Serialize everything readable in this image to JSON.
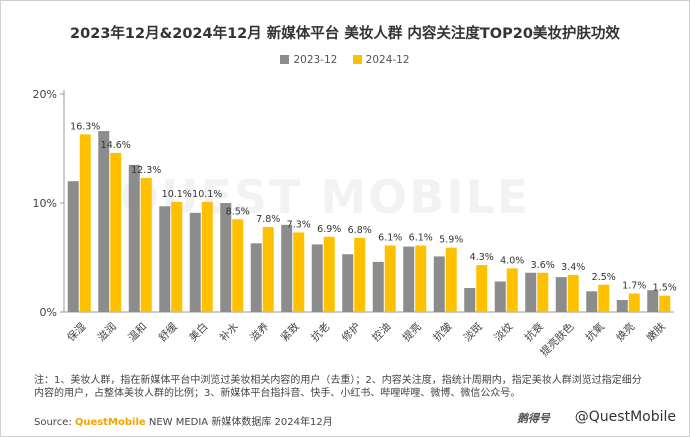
{
  "title": "2023年12月&2024年12月 新媒体平台 美妆人群 内容关注度TOP20美妆护肤功效",
  "legend": {
    "s1": "2023-12",
    "s2": "2024-12"
  },
  "colors": {
    "s1": "#8c8c8c",
    "s2": "#ffc000"
  },
  "note": "注：1、美妆人群，指在新媒体平台中浏览过美妆相关内容的用户（去重）；2、内容关注度，指统计周期内，指定美妆人群浏览过指定细分内容的用户，占整体美妆人群的比例；3、新媒体平台指抖音、快手、小红书、哔哩哔哩、微博、微信公众号。",
  "source": {
    "prefix": "Source: ",
    "brand": "QuestMobile",
    "rest": " NEW MEDIA 新媒体数据库 2024年12月"
  },
  "watermark": {
    "logo": "鹅得号",
    "handle": "@QuestMobile",
    "bg": "QUEST MOBILE"
  },
  "chart_data": {
    "type": "bar",
    "categories": [
      "保湿",
      "滋润",
      "温和",
      "舒缓",
      "美白",
      "补水",
      "滋养",
      "紧致",
      "抗老",
      "修护",
      "控油",
      "提亮",
      "抗皱",
      "淡斑",
      "淡纹",
      "抗衰",
      "提亮肤色",
      "抗氧",
      "焕亮",
      "嫩肤"
    ],
    "series": [
      {
        "name": "2023-12",
        "values": [
          12.0,
          16.6,
          13.5,
          9.7,
          9.1,
          10.0,
          6.3,
          8.0,
          6.2,
          5.3,
          4.6,
          6.0,
          5.1,
          2.2,
          2.8,
          3.6,
          3.2,
          1.9,
          1.1,
          2.0
        ]
      },
      {
        "name": "2024-12",
        "values": [
          16.3,
          14.6,
          12.3,
          10.1,
          10.1,
          8.5,
          7.8,
          7.3,
          6.9,
          6.8,
          6.1,
          6.1,
          5.9,
          4.3,
          4.0,
          3.6,
          3.4,
          2.5,
          1.7,
          1.5
        ]
      }
    ],
    "labels": [
      "16.3%",
      "14.6%",
      "12.3%",
      "10.1%",
      "10.1%",
      "8.5%",
      "7.8%",
      "7.3%",
      "6.9%",
      "6.8%",
      "6.1%",
      "6.1%",
      "5.9%",
      "4.3%",
      "4.0%",
      "3.6%",
      "3.4%",
      "2.5%",
      "1.7%",
      "1.5%"
    ],
    "yticks": [
      "0%",
      "10%",
      "20%"
    ],
    "ylim": [
      0,
      20
    ],
    "grid": false,
    "legend_position": "top-center"
  }
}
